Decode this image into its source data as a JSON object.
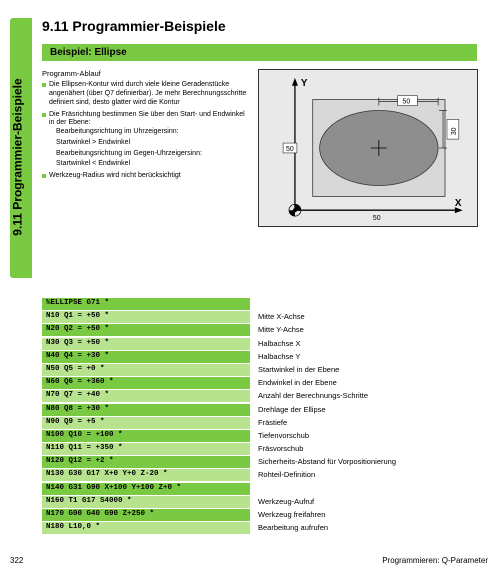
{
  "side_label": "9.11 Programmier-Beispiele",
  "title": "9.11 Programmier-Beispiele",
  "example_banner": "Beispiel: Ellipse",
  "desc": {
    "heading": "Programm-Ablauf",
    "b1": "Die Ellipsen-Kontur wird durch viele kleine Geradenstücke angenähert (über Q7 definierbar). Je mehr Berechnungsschritte definiert sind, desto glatter wird die Kontur",
    "b2": "Die Fräsrichtung bestimmen Sie über den Start- und Endwinkel in der Ebene:",
    "b2a": "Bearbeitungsrichtung im Uhrzeigersinn:",
    "b2b": "Startwinkel > Endwinkel",
    "b2c": "Bearbeitungsrichtung im Gegen-Uhrzeigersinn:",
    "b2d": "Startwinkel < Endwinkel",
    "b3": "Werkzeug-Radius wird nicht berücksichtigt"
  },
  "fig": {
    "y_label": "Y",
    "x_label": "X",
    "dim_top": "50",
    "dim_right": "30",
    "dim_left": "50",
    "dim_bottom": "50",
    "bg": "#e9e9e9",
    "rect_fill": "#d7d7d7",
    "rect_stroke": "#333",
    "ellipse_fill": "#8e8e8e",
    "axis_fill": "#fff",
    "text_color": "#000"
  },
  "rows": [
    {
      "code": "%ELLIPSE G71 *",
      "shade": "g1",
      "cmnt": ""
    },
    {
      "code": "N10 Q1 = +50 *",
      "shade": "g2",
      "cmnt": "Mitte X-Achse"
    },
    {
      "code": "N20 Q2 = +50 *",
      "shade": "g1",
      "cmnt": "Mitte Y-Achse"
    },
    {
      "code": "N30 Q3 = +50 *",
      "shade": "g2",
      "cmnt": "Halbachse X"
    },
    {
      "code": "N40 Q4 = +30 *",
      "shade": "g1",
      "cmnt": "Halbachse Y"
    },
    {
      "code": "N50 Q5 = +0 *",
      "shade": "g2",
      "cmnt": "Startwinkel in der Ebene"
    },
    {
      "code": "N60 Q6 = +360 *",
      "shade": "g1",
      "cmnt": "Endwinkel in der Ebene"
    },
    {
      "code": "N70 Q7 = +40 *",
      "shade": "g2",
      "cmnt": "Anzahl der Berechnungs-Schritte"
    },
    {
      "code": "N80 Q8 = +30 *",
      "shade": "g1",
      "cmnt": "Drehlage der Ellipse"
    },
    {
      "code": "N90 Q9 = +5 *",
      "shade": "g2",
      "cmnt": "Frästiefe"
    },
    {
      "code": "N100 Q10 = +100 *",
      "shade": "g1",
      "cmnt": "Tiefenvorschub"
    },
    {
      "code": "N110 Q11 = +350 *",
      "shade": "g2",
      "cmnt": "Fräsvorschub"
    },
    {
      "code": "N120 Q12 = +2 *",
      "shade": "g1",
      "cmnt": "Sicherheits-Abstand für Vorpositionierung"
    },
    {
      "code": "N130 G30 G17 X+0 Y+0 Z-20 *",
      "shade": "g2",
      "cmnt": "Rohteil-Definition"
    },
    {
      "code": "N140 G31 G90 X+100 Y+100 Z+0 *",
      "shade": "g1",
      "cmnt": ""
    },
    {
      "code": "N160 T1 G17 S4000 *",
      "shade": "g2",
      "cmnt": "Werkzeug-Aufruf"
    },
    {
      "code": "N170 G00 G40 G90 Z+250 *",
      "shade": "g1",
      "cmnt": "Werkzeug freifahren"
    },
    {
      "code": "N180 L10,0 *",
      "shade": "g2",
      "cmnt": "Bearbeitung aufrufen"
    }
  ],
  "footer": {
    "page": "322",
    "chapter": "Programmieren: Q-Parameter"
  },
  "colors": {
    "green1": "#7ac943",
    "green2": "#b7e28e"
  }
}
